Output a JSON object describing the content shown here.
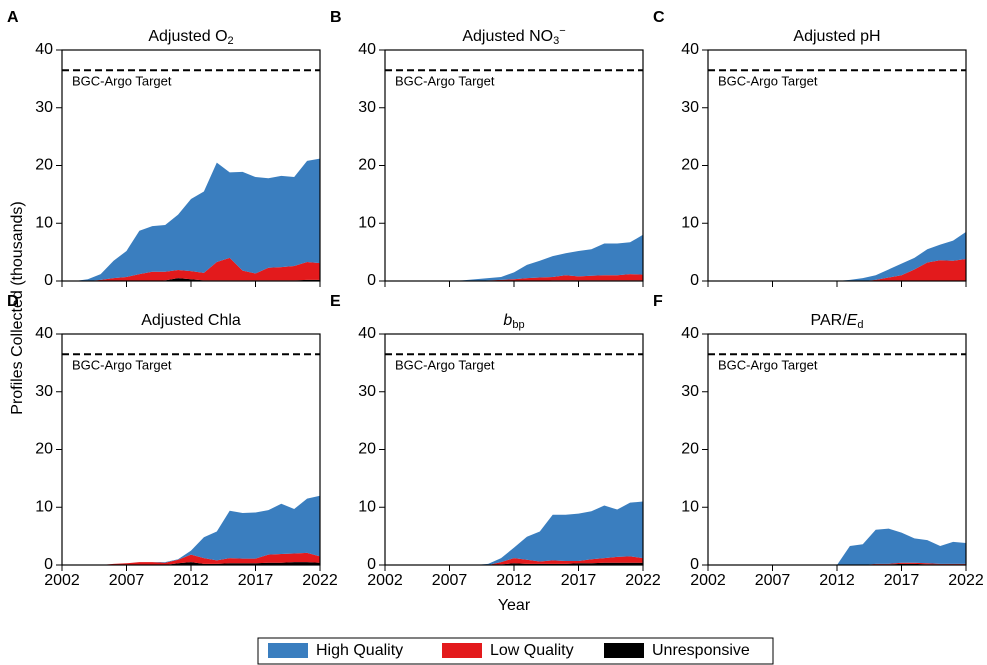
{
  "ylabel": "Profiles Collected (thousands)",
  "xlabel": "Year",
  "chart_data": [
    {
      "type": "stacked-area",
      "panel": "A",
      "title": [
        {
          "text": "Adjusted O"
        },
        {
          "text": "2",
          "sub": true
        }
      ],
      "target": 36.5,
      "target_label": "BGC-Argo Target",
      "x": [
        2002,
        2003,
        2004,
        2005,
        2006,
        2007,
        2008,
        2009,
        2010,
        2011,
        2012,
        2013,
        2014,
        2015,
        2016,
        2017,
        2018,
        2019,
        2020,
        2021,
        2022
      ],
      "series": [
        {
          "name": "High Quality",
          "color": "#3a7ebf",
          "values": [
            0,
            0,
            0.3,
            1.0,
            3.0,
            4.5,
            7.5,
            7.9,
            8.1,
            9.6,
            12.5,
            14.1,
            17.2,
            14.8,
            17.1,
            16.7,
            15.5,
            15.8,
            15.4,
            17.5,
            18.1
          ]
        },
        {
          "name": "Low Quality",
          "color": "#e31a1c",
          "values": [
            0,
            0,
            0,
            0.2,
            0.5,
            0.7,
            1.2,
            1.6,
            1.5,
            1.4,
            1.4,
            1.3,
            3.2,
            3.9,
            1.7,
            1.2,
            2.2,
            2.3,
            2.5,
            3.1,
            2.9
          ]
        },
        {
          "name": "Unresponsive",
          "color": "#000000",
          "values": [
            0,
            0,
            0,
            0,
            0,
            0,
            0,
            0,
            0.1,
            0.5,
            0.3,
            0.1,
            0.1,
            0.1,
            0.1,
            0.1,
            0.1,
            0.1,
            0.1,
            0.2,
            0.2
          ]
        }
      ],
      "xlim": [
        2002,
        2022
      ],
      "ylim": [
        0,
        40
      ],
      "xticks": [
        2002,
        2007,
        2012,
        2017,
        2022
      ],
      "yticks": [
        0,
        10,
        20,
        30,
        40
      ]
    },
    {
      "type": "stacked-area",
      "panel": "B",
      "title": [
        {
          "text": "Adjusted NO"
        },
        {
          "text": "3",
          "sub": true
        },
        {
          "text": "−",
          "sup": true
        }
      ],
      "target": 36.5,
      "target_label": "BGC-Argo Target",
      "x": [
        2002,
        2003,
        2004,
        2005,
        2006,
        2007,
        2008,
        2009,
        2010,
        2011,
        2012,
        2013,
        2014,
        2015,
        2016,
        2017,
        2018,
        2019,
        2020,
        2021,
        2022
      ],
      "series": [
        {
          "name": "High Quality",
          "color": "#3a7ebf",
          "values": [
            0,
            0,
            0,
            0,
            0,
            0,
            0.1,
            0.3,
            0.4,
            0.5,
            1.2,
            2.3,
            2.9,
            3.6,
            3.8,
            4.4,
            4.6,
            5.5,
            5.5,
            5.5,
            6.9
          ]
        },
        {
          "name": "Low Quality",
          "color": "#e31a1c",
          "values": [
            0,
            0,
            0,
            0,
            0,
            0,
            0,
            0,
            0.1,
            0.2,
            0.3,
            0.5,
            0.6,
            0.6,
            0.9,
            0.7,
            0.8,
            0.9,
            0.9,
            1.1,
            1.0
          ]
        },
        {
          "name": "Unresponsive",
          "color": "#000000",
          "values": [
            0,
            0,
            0,
            0,
            0,
            0,
            0,
            0,
            0,
            0,
            0,
            0,
            0,
            0.1,
            0.1,
            0.1,
            0.1,
            0.1,
            0.1,
            0.1,
            0.1
          ]
        }
      ],
      "xlim": [
        2002,
        2022
      ],
      "ylim": [
        0,
        40
      ],
      "xticks": [
        2002,
        2007,
        2012,
        2017,
        2022
      ],
      "yticks": [
        0,
        10,
        20,
        30,
        40
      ]
    },
    {
      "type": "stacked-area",
      "panel": "C",
      "title": [
        {
          "text": "Adjusted pH"
        }
      ],
      "target": 36.5,
      "target_label": "BGC-Argo Target",
      "x": [
        2002,
        2003,
        2004,
        2005,
        2006,
        2007,
        2008,
        2009,
        2010,
        2011,
        2012,
        2013,
        2014,
        2015,
        2016,
        2017,
        2018,
        2019,
        2020,
        2021,
        2022
      ],
      "series": [
        {
          "name": "High Quality",
          "color": "#3a7ebf",
          "values": [
            0,
            0,
            0,
            0,
            0,
            0,
            0,
            0,
            0,
            0,
            0,
            0.2,
            0.5,
            0.8,
            1.4,
            2.0,
            2.0,
            2.3,
            2.7,
            3.5,
            4.7
          ]
        },
        {
          "name": "Low Quality",
          "color": "#e31a1c",
          "values": [
            0,
            0,
            0,
            0,
            0,
            0,
            0,
            0,
            0,
            0,
            0,
            0,
            0,
            0.2,
            0.6,
            1.0,
            2.0,
            3.2,
            3.6,
            3.5,
            3.8
          ]
        },
        {
          "name": "Unresponsive",
          "color": "#000000",
          "values": [
            0,
            0,
            0,
            0,
            0,
            0,
            0,
            0,
            0,
            0,
            0,
            0,
            0,
            0,
            0,
            0,
            0,
            0,
            0,
            0,
            0
          ]
        }
      ],
      "xlim": [
        2002,
        2022
      ],
      "ylim": [
        0,
        40
      ],
      "xticks": [
        2002,
        2007,
        2012,
        2017,
        2022
      ],
      "yticks": [
        0,
        10,
        20,
        30,
        40
      ]
    },
    {
      "type": "stacked-area",
      "panel": "D",
      "title": [
        {
          "text": "Adjusted Chla"
        }
      ],
      "target": 36.5,
      "target_label": "BGC-Argo Target",
      "x": [
        2002,
        2003,
        2004,
        2005,
        2006,
        2007,
        2008,
        2009,
        2010,
        2011,
        2012,
        2013,
        2014,
        2015,
        2016,
        2017,
        2018,
        2019,
        2020,
        2021,
        2022
      ],
      "series": [
        {
          "name": "High Quality",
          "color": "#3a7ebf",
          "values": [
            0,
            0,
            0,
            0,
            0,
            0,
            0,
            0,
            0.1,
            0.1,
            0.7,
            3.6,
            5.0,
            8.2,
            7.9,
            8.0,
            7.7,
            8.7,
            7.7,
            9.4,
            10.5
          ]
        },
        {
          "name": "Low Quality",
          "color": "#e31a1c",
          "values": [
            0,
            0,
            0,
            0,
            0.2,
            0.3,
            0.5,
            0.5,
            0.4,
            0.6,
            1.3,
            1.0,
            0.6,
            0.9,
            0.8,
            0.8,
            1.4,
            1.5,
            1.5,
            1.6,
            1.1
          ]
        },
        {
          "name": "Unresponsive",
          "color": "#000000",
          "values": [
            0,
            0,
            0,
            0,
            0,
            0,
            0,
            0,
            0,
            0.3,
            0.5,
            0.2,
            0.2,
            0.3,
            0.3,
            0.3,
            0.4,
            0.4,
            0.5,
            0.5,
            0.4
          ]
        }
      ],
      "xlim": [
        2002,
        2022
      ],
      "ylim": [
        0,
        40
      ],
      "xticks": [
        2002,
        2007,
        2012,
        2017,
        2022
      ],
      "yticks": [
        0,
        10,
        20,
        30,
        40
      ]
    },
    {
      "type": "stacked-area",
      "panel": "E",
      "title": [
        {
          "text": "b",
          "italic": true
        },
        {
          "text": "bp",
          "sub": true
        }
      ],
      "target": 36.5,
      "target_label": "BGC-Argo Target",
      "x": [
        2002,
        2003,
        2004,
        2005,
        2006,
        2007,
        2008,
        2009,
        2010,
        2011,
        2012,
        2013,
        2014,
        2015,
        2016,
        2017,
        2018,
        2019,
        2020,
        2021,
        2022
      ],
      "series": [
        {
          "name": "High Quality",
          "color": "#3a7ebf",
          "values": [
            0,
            0,
            0,
            0,
            0,
            0,
            0,
            0,
            0.2,
            0.7,
            1.8,
            4.0,
            5.2,
            7.9,
            8.0,
            8.2,
            8.3,
            9.1,
            8.2,
            9.3,
            9.8
          ]
        },
        {
          "name": "Low Quality",
          "color": "#e31a1c",
          "values": [
            0,
            0,
            0,
            0,
            0,
            0,
            0,
            0,
            0,
            0.4,
            0.9,
            0.7,
            0.4,
            0.6,
            0.5,
            0.4,
            0.7,
            0.8,
            1.0,
            1.1,
            0.8
          ]
        },
        {
          "name": "Unresponsive",
          "color": "#000000",
          "values": [
            0,
            0,
            0,
            0,
            0,
            0,
            0,
            0,
            0,
            0.1,
            0.3,
            0.2,
            0.2,
            0.2,
            0.2,
            0.3,
            0.3,
            0.4,
            0.4,
            0.4,
            0.4
          ]
        }
      ],
      "xlim": [
        2002,
        2022
      ],
      "ylim": [
        0,
        40
      ],
      "xticks": [
        2002,
        2007,
        2012,
        2017,
        2022
      ],
      "yticks": [
        0,
        10,
        20,
        30,
        40
      ]
    },
    {
      "type": "stacked-area",
      "panel": "F",
      "title": [
        {
          "text": "PAR/"
        },
        {
          "text": "E",
          "italic": true
        },
        {
          "text": "d",
          "sub": true
        }
      ],
      "target": 36.5,
      "target_label": "BGC-Argo Target",
      "x": [
        2002,
        2003,
        2004,
        2005,
        2006,
        2007,
        2008,
        2009,
        2010,
        2011,
        2012,
        2013,
        2014,
        2015,
        2016,
        2017,
        2018,
        2019,
        2020,
        2021,
        2022
      ],
      "series": [
        {
          "name": "High Quality",
          "color": "#3a7ebf",
          "values": [
            0,
            0,
            0,
            0,
            0,
            0,
            0,
            0,
            0,
            0,
            0,
            3.3,
            3.6,
            5.9,
            6.1,
            5.2,
            4.2,
            4.0,
            3.1,
            3.8,
            3.6
          ]
        },
        {
          "name": "Low Quality",
          "color": "#e31a1c",
          "values": [
            0,
            0,
            0,
            0,
            0,
            0,
            0,
            0,
            0,
            0,
            0,
            0,
            0,
            0.1,
            0.1,
            0.2,
            0.2,
            0.2,
            0.1,
            0.1,
            0.1
          ]
        },
        {
          "name": "Unresponsive",
          "color": "#000000",
          "values": [
            0,
            0,
            0,
            0,
            0,
            0,
            0,
            0,
            0,
            0,
            0,
            0,
            0,
            0.1,
            0.1,
            0.2,
            0.2,
            0.1,
            0.1,
            0.1,
            0.1
          ]
        }
      ],
      "xlim": [
        2002,
        2022
      ],
      "ylim": [
        0,
        40
      ],
      "xticks": [
        2002,
        2007,
        2012,
        2017,
        2022
      ],
      "yticks": [
        0,
        10,
        20,
        30,
        40
      ]
    }
  ]
}
